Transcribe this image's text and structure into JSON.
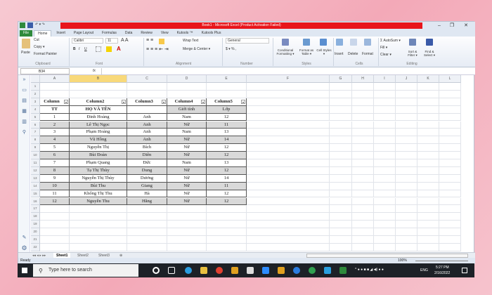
{
  "window": {
    "title": "Book1 - Microsoft Excel (Product Activation Failed)",
    "min": "–",
    "max": "❐",
    "close": "✕"
  },
  "tabs": [
    "File",
    "Home",
    "Insert",
    "Page Layout",
    "Formulas",
    "Data",
    "Review",
    "View",
    "Kutools ™",
    "Kutools Plus"
  ],
  "ribbon": {
    "clipboard": {
      "paste": "Paste",
      "cut": "Cut",
      "copy": "Copy ▾",
      "format_painter": "Format Painter",
      "label": "Clipboard"
    },
    "font": {
      "name": "Calibri",
      "size": "11",
      "label": "Font",
      "bold": "B",
      "italic": "I",
      "underline": "U"
    },
    "alignment": {
      "wrap": "Wrap Text",
      "merge": "Merge & Center ▾",
      "label": "Alignment"
    },
    "number": {
      "format": "General",
      "currency": "$ ▾ %  ,",
      "label": "Number"
    },
    "styles": {
      "conditional": "Conditional Formatting ▾",
      "format_table": "Format as Table ▾",
      "cell_styles": "Cell Styles ▾",
      "label": "Styles"
    },
    "cells": {
      "insert": "Insert",
      "delete": "Delete",
      "format": "Format",
      "label": "Cells"
    },
    "editing": {
      "autosum": "Σ AutoSum ▾",
      "fill": "Fill ▾",
      "clear": "Clear ▾",
      "sort": "Sort & Filter ▾",
      "find": "Find & Select ▾",
      "label": "Editing"
    }
  },
  "formula_bar": {
    "name_box": "B34",
    "fx": "fx",
    "value": ""
  },
  "columns": [
    "A",
    "B",
    "C",
    "D",
    "E",
    "F",
    "G",
    "H",
    "I",
    "J",
    "K",
    "L"
  ],
  "selected_column": "B",
  "rows": 22,
  "table": {
    "headers": [
      "Column",
      "Column2",
      "Column3",
      "Column4",
      "Column5"
    ],
    "header_row": [
      "TT",
      "HỌ VÀ TÊN",
      "",
      "Giới tính",
      "Lớp"
    ],
    "data": [
      [
        "1",
        "Đinh Hoàng",
        "Anh",
        "Nam",
        "12"
      ],
      [
        "2",
        "Lê Thị Ngọc",
        "Anh",
        "Nữ",
        "11"
      ],
      [
        "3",
        "Phạm Hoàng",
        "Anh",
        "Nam",
        "13"
      ],
      [
        "4",
        "Vũ Hồng",
        "Anh",
        "Nữ",
        "14"
      ],
      [
        "5",
        "Nguyễn Thị",
        "Bích",
        "Nữ",
        "12"
      ],
      [
        "6",
        "Bùi Đoàn",
        "Diên",
        "Nữ",
        "12"
      ],
      [
        "7",
        "Phạm Quang",
        "Đức",
        "Nam",
        "13"
      ],
      [
        "8",
        "Tạ Thị Thùy",
        "Dung",
        "Nữ",
        "12"
      ],
      [
        "9",
        "Nguyễn Thị Thùy",
        "Dương",
        "Nữ",
        "14"
      ],
      [
        "10",
        "Bùi Thu",
        "Giang",
        "Nữ",
        "11"
      ],
      [
        "11",
        "Khổng Thị Thu",
        "Hà",
        "Nữ",
        "12"
      ],
      [
        "12",
        "Nguyễn Thu",
        "Hằng",
        "Nữ",
        "12"
      ]
    ]
  },
  "sheets": [
    "Sheet1",
    "Sheet2",
    "Sheet3"
  ],
  "active_sheet": "Sheet1",
  "status": {
    "ready": "Ready",
    "zoom": "100%"
  },
  "taskbar": {
    "search_placeholder": "Type here to search",
    "time": "5:27 PM",
    "date": "2/16/2022",
    "lang": "ENG"
  },
  "colors": {
    "title_bar": "#e8151b",
    "file_tab": "#2f8a3c",
    "selected_column": "#f8d97a",
    "band": "#d9d9d9"
  }
}
